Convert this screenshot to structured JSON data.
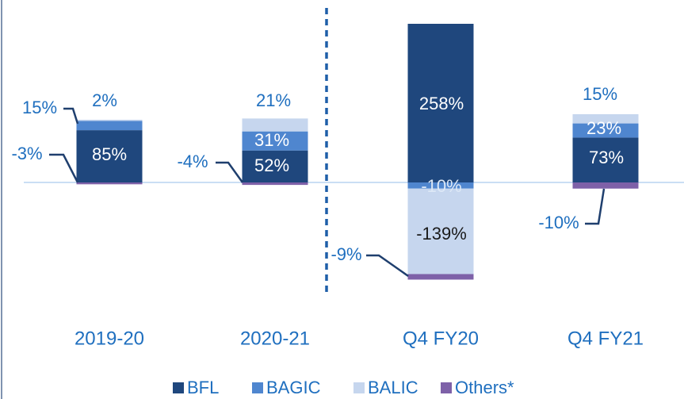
{
  "chart_data": {
    "type": "stacked_bar",
    "categories": [
      "2019-20",
      "2020-21",
      "Q4 FY20",
      "Q4 FY21"
    ],
    "series": [
      {
        "name": "BFL",
        "color": "#1f477d",
        "values": [
          85,
          52,
          258,
          73
        ],
        "value_labels": [
          "85%",
          "52%",
          "258%",
          "73%"
        ]
      },
      {
        "name": "BAGIC",
        "color": "#4f86cf",
        "values": [
          15,
          31,
          -10,
          23
        ],
        "value_labels": [
          "15%",
          "31%",
          "-10%",
          "23%"
        ]
      },
      {
        "name": "BALIC",
        "color": "#c6d6ee",
        "values": [
          2,
          21,
          -139,
          15
        ],
        "value_labels": [
          "2%",
          "21%",
          "-139%",
          "15%"
        ]
      },
      {
        "name": "Others*",
        "color": "#7e61a8",
        "values": [
          -3,
          -4,
          -9,
          -10
        ],
        "value_labels": [
          "-3%",
          "-4%",
          "-9%",
          "-10%"
        ]
      }
    ]
  }
}
